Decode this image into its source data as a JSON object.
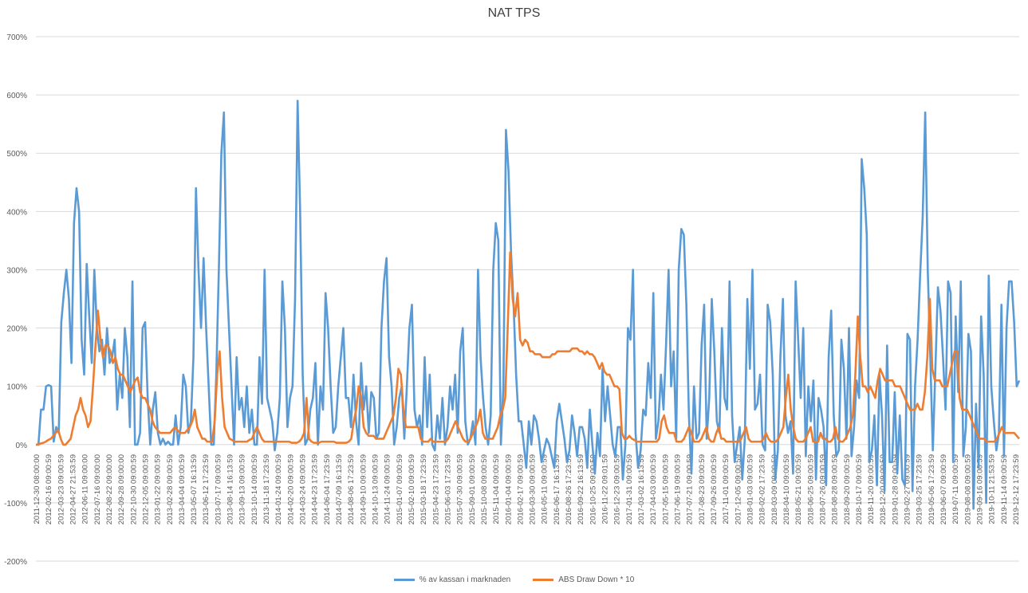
{
  "chart_data": {
    "type": "line",
    "title": "NAT TPS",
    "y_tick_labels": [
      "700%",
      "600%",
      "500%",
      "400%",
      "300%",
      "200%",
      "100%",
      "0%",
      "-100%",
      "-200%"
    ],
    "y_ticks": [
      700,
      600,
      500,
      400,
      300,
      200,
      100,
      0,
      -100,
      -200
    ],
    "ylim": [
      -200,
      700
    ],
    "grid": true,
    "legend_position": "bottom",
    "x_tick_labels": [
      "2011-12-30 08:00:00",
      "2012-02-16 09:00:59",
      "2012-03-23 09:00:59",
      "2012-04-27 21:53:59",
      "2012-06-11 09:00:00",
      "2012-07-16 09:00:00",
      "2012-08-22 09:00:00",
      "2012-09-28 09:00:00",
      "2012-10-30 09:00:59",
      "2012-12-05 09:00:59",
      "2013-01-22 09:00:59",
      "2013-02-28 09:00:59",
      "2013-04-04 09:00:59",
      "2013-05-07 16:13:59",
      "2013-06-12 17:23:59",
      "2013-07-17 09:00:59",
      "2013-08-14 16:13:59",
      "2013-09-13 09:00:59",
      "2013-10-14 09:00:59",
      "2013-11-18 17:23:59",
      "2014-01-24 09:00:59",
      "2014-02-20 09:00:59",
      "2014-03-24 09:00:59",
      "2014-04-23 17:23:59",
      "2014-06-04 17:23:59",
      "2014-07-09 16:13:59",
      "2014-08-06 17:23:59",
      "2014-09-10 09:00:59",
      "2014-10-13 09:00:59",
      "2014-11-24 09:00:59",
      "2015-01-07 09:00:59",
      "2015-02-10 09:00:59",
      "2015-03-18 17:23:59",
      "2015-04-23 17:23:59",
      "2015-06-03 17:23:59",
      "2015-07-30 09:00:59",
      "2015-09-01 09:00:59",
      "2015-10-08 09:00:59",
      "2015-11-04 09:00:59",
      "2016-01-04 09:00:59",
      "2016-02-17 09:00:59",
      "2016-03-30 09:00:59",
      "2016-05-11 09:00:59",
      "2016-06-17 16:13:59",
      "2016-08-26 17:23:59",
      "2016-09-22 16:13:59",
      "2016-10-25 09:00:59",
      "2016-11-22 09:01:59",
      "2016-12-23 09:00:59",
      "2017-01-31 09:00:59",
      "2017-03-02 16:13:59",
      "2017-04-03 09:00:59",
      "2017-05-15 09:00:59",
      "2017-06-19 09:00:59",
      "2017-07-21 09:00:59",
      "2017-08-23 09:00:59",
      "2017-09-26 09:00:59",
      "2017-11-01 09:00:59",
      "2017-12-05 09:00:59",
      "2018-01-03 09:00:59",
      "2018-02-02 17:23:59",
      "2018-03-09 09:00:59",
      "2018-04-10 09:00:59",
      "2018-05-21 09:00:59",
      "2018-06-25 09:00:59",
      "2018-07-26 09:00:59",
      "2018-08-28 09:00:59",
      "2018-09-20 09:00:59",
      "2018-10-17 09:00:59",
      "2018-11-20 09:00:59",
      "2018-12-20 09:00:59",
      "2019-01-28 09:00:59",
      "2019-02-27 09:00:59",
      "2019-03-25 17:23:59",
      "2019-05-06 17:23:59",
      "2019-06-07 09:00:59",
      "2019-07-11 09:00:59",
      "2019-08-08 09:00:59",
      "2019-09-16 09:00:59",
      "2019-10-11 21:53:59",
      "2019-11-14 09:00:59",
      "2019-12-12 17:23:59"
    ],
    "series": [
      {
        "name": "% av kassan i marknaden",
        "color": "#5B9BD5",
        "values": [
          0,
          0,
          60,
          60,
          100,
          102,
          100,
          5,
          30,
          20,
          210,
          260,
          300,
          250,
          140,
          380,
          440,
          400,
          180,
          120,
          310,
          220,
          140,
          300,
          200,
          160,
          180,
          120,
          200,
          140,
          150,
          180,
          60,
          120,
          80,
          200,
          150,
          30,
          280,
          0,
          0,
          20,
          200,
          210,
          80,
          0,
          60,
          90,
          20,
          0,
          10,
          0,
          5,
          0,
          0,
          50,
          0,
          30,
          120,
          100,
          20,
          40,
          150,
          440,
          300,
          200,
          320,
          200,
          100,
          0,
          0,
          120,
          300,
          500,
          570,
          300,
          200,
          100,
          0,
          150,
          60,
          80,
          30,
          100,
          20,
          60,
          0,
          0,
          150,
          70,
          300,
          80,
          60,
          40,
          -10,
          20,
          80,
          280,
          200,
          30,
          80,
          100,
          250,
          590,
          400,
          120,
          0,
          10,
          60,
          80,
          140,
          0,
          100,
          60,
          260,
          200,
          100,
          20,
          30,
          100,
          150,
          200,
          80,
          80,
          30,
          120,
          40,
          0,
          140,
          60,
          100,
          20,
          90,
          80,
          10,
          20,
          200,
          280,
          320,
          150,
          100,
          0,
          30,
          80,
          100,
          10,
          100,
          200,
          240,
          60,
          30,
          50,
          0,
          150,
          30,
          120,
          0,
          -10,
          50,
          10,
          80,
          0,
          30,
          100,
          60,
          120,
          20,
          160,
          200,
          40,
          0,
          10,
          40,
          0,
          300,
          150,
          80,
          30,
          0,
          50,
          300,
          380,
          350,
          0,
          100,
          540,
          470,
          330,
          240,
          120,
          40,
          40,
          0,
          -40,
          40,
          0,
          50,
          40,
          10,
          -30,
          -10,
          10,
          0,
          -20,
          -40,
          40,
          70,
          40,
          10,
          -30,
          -10,
          50,
          20,
          -20,
          30,
          30,
          10,
          -40,
          60,
          0,
          -50,
          20,
          -20,
          130,
          40,
          100,
          50,
          0,
          -20,
          30,
          30,
          -60,
          0,
          200,
          180,
          300,
          20,
          -40,
          -10,
          60,
          50,
          140,
          80,
          260,
          10,
          40,
          120,
          60,
          170,
          300,
          100,
          160,
          10,
          300,
          370,
          360,
          240,
          50,
          -50,
          100,
          10,
          20,
          170,
          240,
          10,
          80,
          250,
          160,
          40,
          20,
          200,
          80,
          60,
          280,
          50,
          -30,
          0,
          30,
          -60,
          10,
          250,
          130,
          300,
          60,
          70,
          120,
          0,
          -10,
          240,
          210,
          120,
          -60,
          -10,
          150,
          250,
          50,
          20,
          40,
          -50,
          280,
          180,
          80,
          200,
          -20,
          100,
          40,
          110,
          -60,
          80,
          60,
          30,
          -70,
          150,
          230,
          50,
          -20,
          -10,
          180,
          130,
          10,
          200,
          -20,
          30,
          110,
          80,
          490,
          440,
          360,
          -30,
          -10,
          50,
          -70,
          120,
          50,
          -80,
          170,
          -30,
          -30,
          90,
          -50,
          50,
          -60,
          -70,
          190,
          180,
          -80,
          100,
          180,
          290,
          390,
          570,
          300,
          150,
          -10,
          130,
          270,
          230,
          150,
          60,
          280,
          260,
          -30,
          220,
          90,
          280,
          -20,
          30,
          190,
          160,
          -110,
          70,
          -40,
          220,
          120,
          -100,
          290,
          100,
          40,
          -10,
          20,
          240,
          -20,
          200,
          280,
          280,
          210,
          100,
          110
        ]
      },
      {
        "name": "ABS Draw Down * 10",
        "color": "#ED7D31",
        "values": [
          0,
          0,
          2,
          3,
          5,
          8,
          10,
          15,
          20,
          25,
          10,
          0,
          0,
          5,
          10,
          30,
          50,
          60,
          80,
          60,
          50,
          30,
          40,
          100,
          170,
          230,
          180,
          150,
          170,
          170,
          160,
          140,
          150,
          130,
          120,
          120,
          110,
          100,
          90,
          100,
          110,
          115,
          90,
          80,
          80,
          70,
          60,
          40,
          30,
          25,
          20,
          20,
          20,
          20,
          20,
          25,
          30,
          25,
          20,
          20,
          20,
          25,
          30,
          40,
          60,
          30,
          20,
          10,
          10,
          5,
          5,
          5,
          40,
          120,
          160,
          80,
          30,
          20,
          10,
          8,
          5,
          5,
          5,
          5,
          5,
          5,
          8,
          10,
          20,
          30,
          20,
          10,
          5,
          5,
          5,
          5,
          5,
          5,
          5,
          5,
          5,
          5,
          5,
          3,
          3,
          3,
          5,
          10,
          20,
          80,
          10,
          5,
          3,
          3,
          3,
          5,
          5,
          5,
          5,
          5,
          5,
          3,
          3,
          3,
          3,
          3,
          5,
          10,
          40,
          60,
          100,
          80,
          30,
          20,
          15,
          15,
          15,
          10,
          10,
          10,
          10,
          20,
          30,
          40,
          50,
          80,
          130,
          120,
          60,
          30,
          30,
          30,
          30,
          30,
          30,
          10,
          5,
          5,
          5,
          10,
          5,
          5,
          5,
          5,
          5,
          5,
          10,
          20,
          30,
          40,
          30,
          20,
          10,
          5,
          5,
          10,
          20,
          30,
          40,
          60,
          20,
          10,
          10,
          10,
          10,
          20,
          30,
          50,
          60,
          80,
          200,
          330,
          250,
          220,
          260,
          180,
          170,
          180,
          175,
          160,
          160,
          155,
          155,
          155,
          150,
          150,
          150,
          150,
          155,
          155,
          160,
          160,
          160,
          160,
          160,
          160,
          165,
          165,
          165,
          160,
          160,
          155,
          160,
          155,
          155,
          150,
          140,
          130,
          140,
          125,
          120,
          120,
          110,
          100,
          100,
          95,
          20,
          10,
          10,
          15,
          10,
          8,
          5,
          5,
          5,
          5,
          5,
          5,
          5,
          5,
          5,
          10,
          40,
          50,
          30,
          20,
          20,
          20,
          5,
          5,
          5,
          10,
          20,
          30,
          20,
          5,
          5,
          5,
          10,
          20,
          30,
          10,
          5,
          5,
          20,
          30,
          10,
          10,
          5,
          5,
          5,
          5,
          5,
          5,
          10,
          20,
          30,
          10,
          5,
          5,
          5,
          5,
          5,
          10,
          20,
          10,
          5,
          5,
          5,
          10,
          20,
          30,
          80,
          120,
          60,
          30,
          10,
          5,
          5,
          5,
          10,
          20,
          30,
          5,
          5,
          5,
          20,
          10,
          10,
          5,
          5,
          10,
          30,
          10,
          5,
          5,
          10,
          20,
          30,
          50,
          120,
          220,
          150,
          100,
          100,
          90,
          100,
          90,
          80,
          110,
          130,
          120,
          110,
          110,
          110,
          110,
          100,
          100,
          100,
          90,
          80,
          70,
          60,
          60,
          60,
          70,
          60,
          60,
          90,
          150,
          250,
          130,
          110,
          110,
          110,
          100,
          100,
          100,
          120,
          140,
          160,
          160,
          80,
          60,
          60,
          60,
          50,
          40,
          30,
          20,
          10,
          10,
          10,
          5,
          5,
          5,
          5,
          10,
          20,
          30,
          20,
          20,
          20,
          20,
          20,
          15,
          10
        ]
      }
    ]
  }
}
